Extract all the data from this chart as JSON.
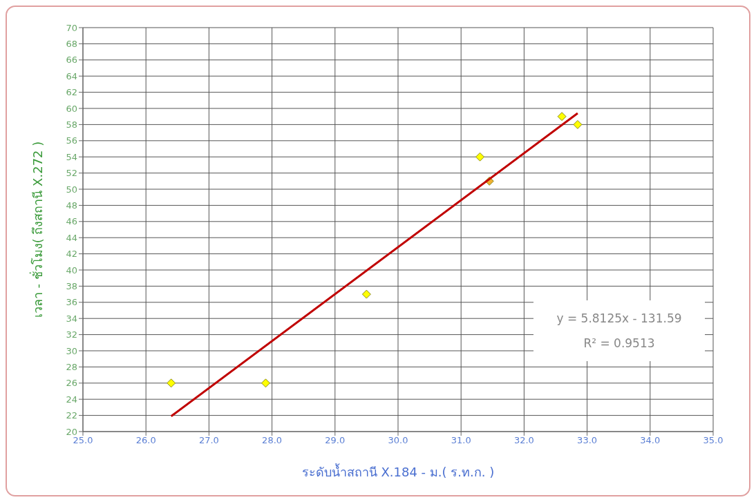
{
  "chart_data": {
    "type": "scatter",
    "xlabel": "ระดับน้ำสถานี X.184 - ม.( ร.ท.ก. )",
    "ylabel": "เวลา - ชั่วโมง( ถึงสถานี X.272 )",
    "xlim": [
      25,
      35
    ],
    "xticks": [
      {
        "value": 25,
        "label": "25.0"
      },
      {
        "value": 26,
        "label": "26.0"
      },
      {
        "value": 27,
        "label": "27.0"
      },
      {
        "value": 28,
        "label": "28.0"
      },
      {
        "value": 29,
        "label": "29.0"
      },
      {
        "value": 30,
        "label": "30.0"
      },
      {
        "value": 31,
        "label": "31.0"
      },
      {
        "value": 32,
        "label": "32.0"
      },
      {
        "value": 33,
        "label": "33.0"
      },
      {
        "value": 34,
        "label": "34.0"
      },
      {
        "value": 35,
        "label": "35.0"
      }
    ],
    "ylim": [
      20,
      70
    ],
    "yticks": [
      20,
      22,
      24,
      26,
      28,
      30,
      32,
      34,
      36,
      38,
      40,
      42,
      44,
      46,
      48,
      50,
      52,
      54,
      56,
      58,
      60,
      62,
      64,
      66,
      68,
      70
    ],
    "grid": true,
    "marker": "diamond",
    "legend": false,
    "series": [
      {
        "color": "#ffff00",
        "x": [
          26.4,
          27.9,
          29.5,
          31.3,
          31.45,
          32.6,
          32.85
        ],
        "values": [
          26,
          26,
          37,
          54,
          51,
          59,
          58
        ],
        "colors": [
          "#ffff00",
          "#ffff00",
          "#ffff00",
          "#ffff00",
          "#f0b030",
          "#ffff00",
          "#ffff00"
        ]
      },
      {
        "type": "line",
        "color": "#c00000",
        "marker": "none",
        "line_style": "solid",
        "x": [
          26.4,
          32.85
        ],
        "values": [
          21.9,
          59.4
        ]
      }
    ],
    "annotations": [
      "y = 5.8125x - 131.59",
      "R² = 0.9513"
    ]
  }
}
